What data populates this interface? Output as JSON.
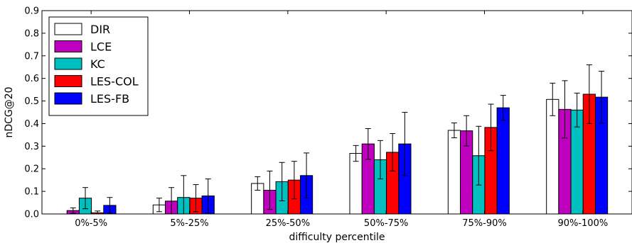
{
  "chart_data": {
    "type": "bar",
    "title": "",
    "xlabel": "difficulty percentile",
    "ylabel": "nDCG@20",
    "ylim": [
      0,
      0.9
    ],
    "yticks": [
      "0.0",
      "0.1",
      "0.2",
      "0.3",
      "0.4",
      "0.5",
      "0.6",
      "0.7",
      "0.8",
      "0.9"
    ],
    "categories": [
      "0%-5%",
      "5%-25%",
      "25%-50%",
      "50%-75%",
      "75%-90%",
      "90%-100%"
    ],
    "legend_position": "top-left",
    "error_bars": true,
    "series": [
      {
        "name": "DIR",
        "color": "#ffffff",
        "values": [
          0.0,
          0.04,
          0.135,
          0.268,
          0.37,
          0.507
        ],
        "errors": [
          0.0,
          0.03,
          0.03,
          0.035,
          0.033,
          0.072
        ]
      },
      {
        "name": "LCE",
        "color": "#bf00bf",
        "values": [
          0.015,
          0.057,
          0.105,
          0.31,
          0.368,
          0.463
        ],
        "errors": [
          0.012,
          0.06,
          0.085,
          0.068,
          0.067,
          0.127
        ]
      },
      {
        "name": "KC",
        "color": "#00bfbf",
        "values": [
          0.07,
          0.073,
          0.143,
          0.24,
          0.258,
          0.46
        ],
        "errors": [
          0.047,
          0.097,
          0.085,
          0.085,
          0.13,
          0.075
        ]
      },
      {
        "name": "LES-COL",
        "color": "#ff0000",
        "values": [
          0.005,
          0.07,
          0.15,
          0.273,
          0.383,
          0.53
        ],
        "errors": [
          0.008,
          0.06,
          0.083,
          0.083,
          0.103,
          0.13
        ]
      },
      {
        "name": "LES-FB",
        "color": "#0000ff",
        "values": [
          0.038,
          0.08,
          0.17,
          0.31,
          0.47,
          0.517
        ],
        "errors": [
          0.035,
          0.075,
          0.1,
          0.14,
          0.055,
          0.115
        ]
      }
    ]
  }
}
